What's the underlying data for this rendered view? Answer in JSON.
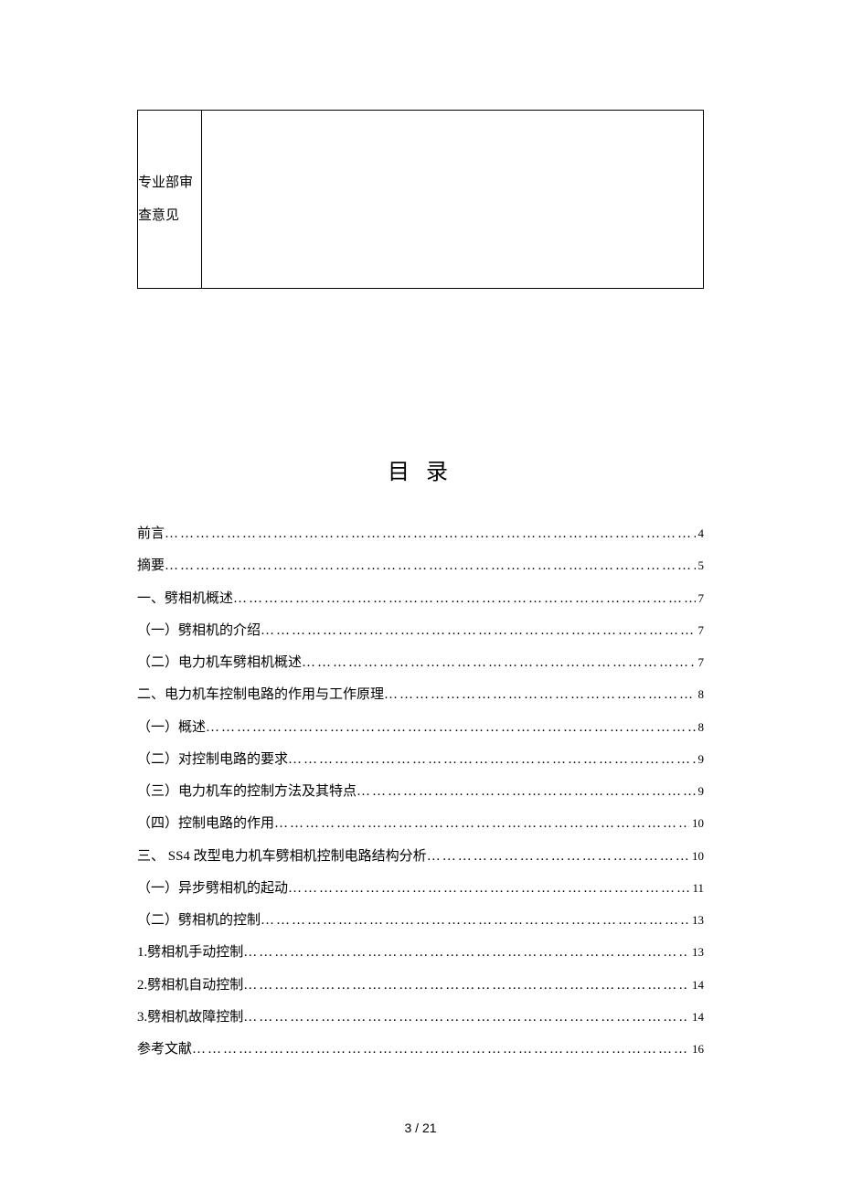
{
  "reviewBox": {
    "label": "专业部审查意见"
  },
  "tocTitle": "目 录",
  "tocEntries": [
    {
      "text": "前言",
      "page": " 4"
    },
    {
      "text": "摘要",
      "page": " 5"
    },
    {
      "text": "一、劈相机概述",
      "page": "7"
    },
    {
      "text": "（一）劈相机的介绍",
      "page": "7"
    },
    {
      "text": "（二）电力机车劈相机概述",
      "page": "7"
    },
    {
      "text": "二、电力机车控制电路的作用与工作原理",
      "page": "8"
    },
    {
      "text": "（一）概述",
      "page": "8"
    },
    {
      "text": "（二）对控制电路的要求",
      "page": "9"
    },
    {
      "text": "（三）电力机车的控制方法及其特点",
      "page": "9"
    },
    {
      "text": "（四）控制电路的作用",
      "page": "10"
    },
    {
      "text": "三、 SS4 改型电力机车劈相机控制电路结构分析 ",
      "page": "10"
    },
    {
      "text": "（一）异步劈相机的起动",
      "page": "11"
    },
    {
      "text": "（二）劈相机的控制",
      "page": "13"
    },
    {
      "text": "1.劈相机手动控制",
      "page": "13"
    },
    {
      "text": "2.劈相机自动控制",
      "page": "14"
    },
    {
      "text": "3.劈相机故障控制",
      "page": "14"
    },
    {
      "text": "参考文献",
      "page": "16"
    }
  ],
  "footer": "3 / 21"
}
